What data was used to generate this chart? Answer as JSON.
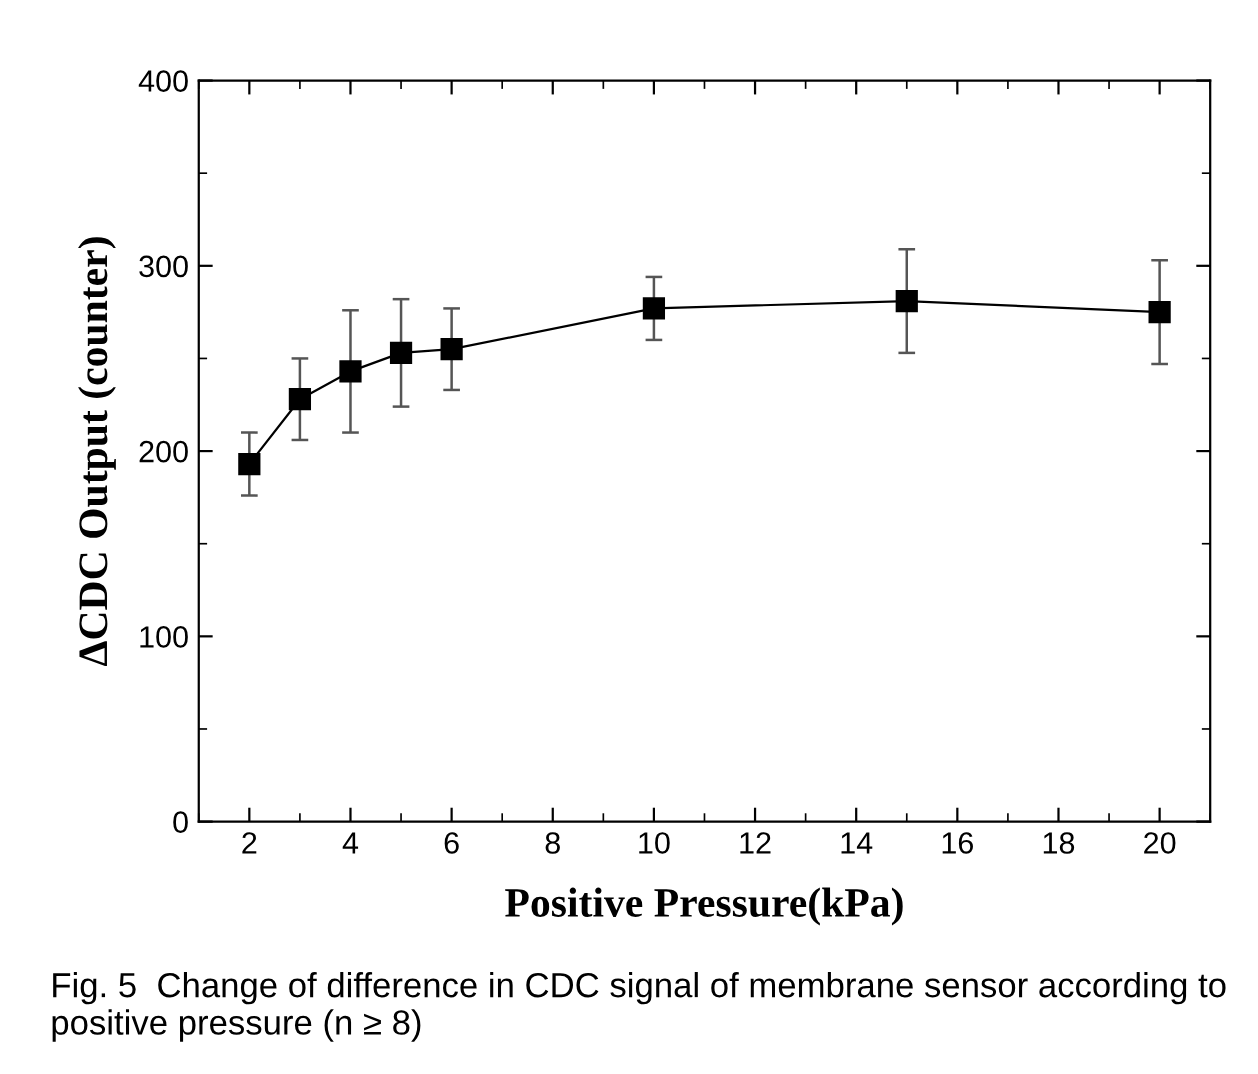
{
  "chart_data": {
    "type": "line",
    "xlabel": "Positive Pressure(kPa)",
    "ylabel": "ΔCDC Output (counter)",
    "x": [
      2,
      3,
      4,
      5,
      6,
      10,
      15,
      20
    ],
    "series": [
      {
        "color": "#000000",
        "values": [
          193,
          228,
          243,
          253,
          255,
          277,
          281,
          275
        ],
        "errors": [
          17,
          22,
          33,
          29,
          22,
          17,
          28,
          28
        ]
      }
    ],
    "xlim": [
      1,
      21
    ],
    "xticks": [
      2,
      4,
      6,
      8,
      10,
      12,
      14,
      16,
      18,
      20
    ],
    "ylim": [
      0,
      400
    ],
    "yticks": [
      0,
      100,
      200,
      300,
      400
    ],
    "marker": "square",
    "line_style": "solid",
    "grid": false,
    "legend": false,
    "annotations": [
      "Fig. 5  Change of difference in CDC signal of membrane sensor according to positive pressure (n ≥ 8)"
    ]
  }
}
